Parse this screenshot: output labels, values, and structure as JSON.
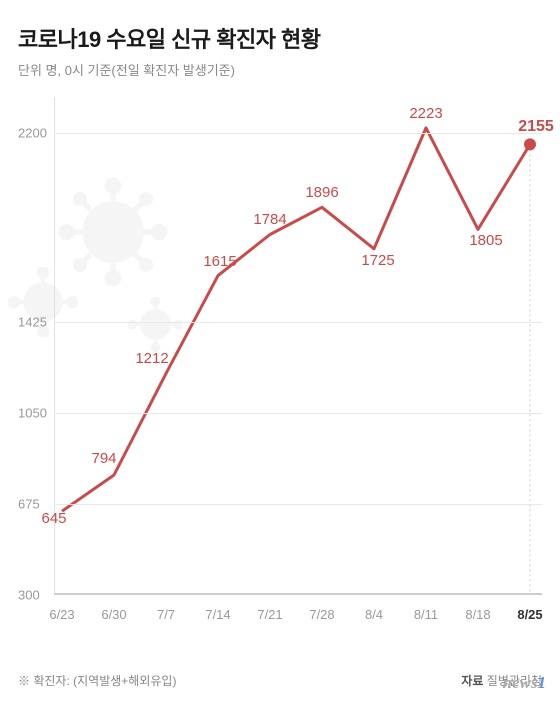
{
  "title": "코로나19 수요일 신규 확진자 현황",
  "subtitle": "단위 명, 0시 기준(전일 확진자 발생기준)",
  "chart": {
    "type": "line",
    "line_color": "#c94a4a",
    "line_width": 3,
    "grid_color": "#e8e8e8",
    "axis_color": "#cccccc",
    "background_color": "#ffffff",
    "ylim": [
      300,
      2350
    ],
    "y_ticks": [
      300,
      675,
      1050,
      1425,
      2200
    ],
    "y_tick_color": "#999999",
    "y_tick_fontsize": 13,
    "x_labels": [
      "6/23",
      "6/30",
      "7/7",
      "7/14",
      "7/21",
      "7/28",
      "8/4",
      "8/11",
      "8/18",
      "8/25"
    ],
    "x_label_color": "#999999",
    "x_label_fontsize": 13,
    "x_label_last_bold": true,
    "values": [
      645,
      794,
      1212,
      1615,
      1784,
      1896,
      1725,
      2223,
      1805,
      2155
    ],
    "data_label_color": "#c94a4a",
    "data_label_fontsize": 15,
    "last_point_radius": 6,
    "last_vline_dash": "2 3"
  },
  "footnote_left": "※ 확진자: (지역발생+해외유입)",
  "footnote_source_label": "자료",
  "footnote_source_value": "질병관리청",
  "logo_text": "news",
  "logo_num": "1"
}
